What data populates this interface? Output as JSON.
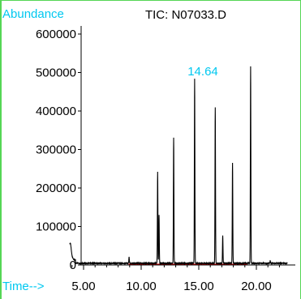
{
  "chart_data": {
    "type": "line",
    "title": "TIC: N07033.D",
    "ylabel": "Abundance",
    "xlabel": "Time-->",
    "annotation": "14.64",
    "y_ticks": [
      "0",
      "100000",
      "200000",
      "300000",
      "400000",
      "500000",
      "600000"
    ],
    "x_ticks": [
      "5.00",
      "10.00",
      "15.00",
      "20.00"
    ],
    "ylim": [
      0,
      640000
    ],
    "xlim": [
      3.8,
      22.7
    ],
    "grid": false,
    "colors": {
      "trace": "#000000",
      "baseline": "#cc0000",
      "axis_labels": "#00c8f0",
      "title": "#000000",
      "frame": "#55d655"
    },
    "baseline": {
      "x": [
        8.9,
        19.2
      ],
      "y": [
        2000,
        2000
      ]
    },
    "peaks": [
      {
        "rt": 3.85,
        "height": 30000
      },
      {
        "rt": 8.95,
        "height": 16000
      },
      {
        "rt": 11.43,
        "height": 237000
      },
      {
        "rt": 11.55,
        "height": 126000
      },
      {
        "rt": 12.82,
        "height": 327000
      },
      {
        "rt": 14.64,
        "height": 479000
      },
      {
        "rt": 16.43,
        "height": 405000
      },
      {
        "rt": 17.08,
        "height": 72000
      },
      {
        "rt": 17.93,
        "height": 260000
      },
      {
        "rt": 19.5,
        "height": 511000
      },
      {
        "rt": 21.2,
        "height": 6000
      }
    ]
  }
}
